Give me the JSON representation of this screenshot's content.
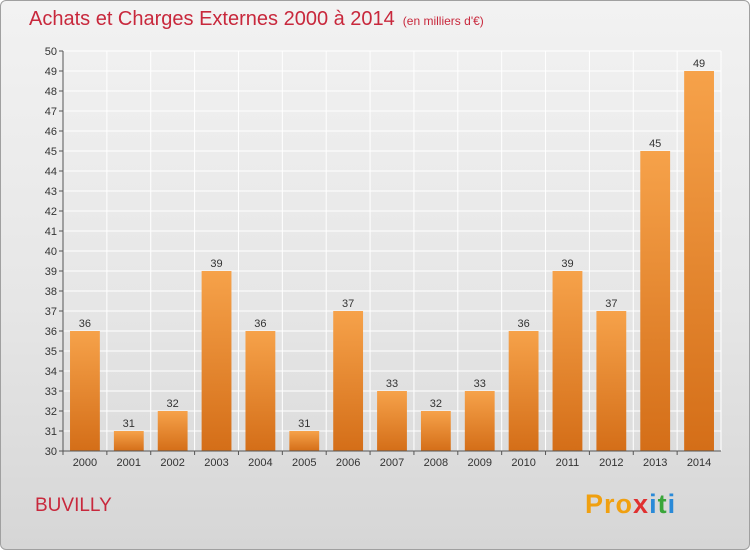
{
  "chart_data": {
    "type": "bar",
    "title": "Achats et Charges Externes 2000 à 2014",
    "subtitle": "(en milliers d'€)",
    "categories": [
      "2000",
      "2001",
      "2002",
      "2003",
      "2004",
      "2005",
      "2006",
      "2007",
      "2008",
      "2009",
      "2010",
      "2011",
      "2012",
      "2013",
      "2014"
    ],
    "values": [
      36,
      31,
      32,
      39,
      36,
      31,
      37,
      33,
      32,
      33,
      36,
      39,
      37,
      45,
      49
    ],
    "ylim": [
      30,
      50
    ],
    "yticks": [
      30,
      31,
      32,
      33,
      34,
      35,
      36,
      37,
      38,
      39,
      40,
      41,
      42,
      43,
      44,
      45,
      46,
      47,
      48,
      49,
      50
    ],
    "grid": true,
    "bar_color": "#f08a30"
  },
  "location": "BUVILLY",
  "logo": {
    "text": "Proxiti",
    "letters": [
      "P",
      "r",
      "o",
      "x",
      "i",
      "t",
      "i"
    ],
    "colors": [
      "#f0a010",
      "#f0a010",
      "#f0a010",
      "#e03030",
      "#2a8ad8",
      "#3aa63a",
      "#2a8ad8"
    ]
  }
}
